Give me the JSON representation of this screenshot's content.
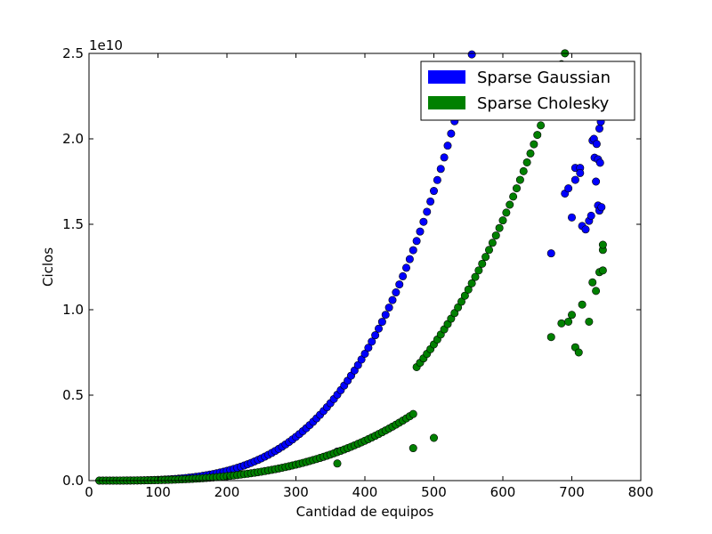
{
  "chart_data": {
    "type": "scatter",
    "xlabel": "Cantidad de equipos",
    "ylabel": "Ciclos",
    "y_multiplier_label": "1e10",
    "xlim": [
      0,
      800
    ],
    "ylim": [
      0,
      2.5
    ],
    "x_ticks": [
      "0",
      "100",
      "200",
      "300",
      "400",
      "500",
      "600",
      "700",
      "800"
    ],
    "y_ticks": [
      "0.0",
      "0.5",
      "1.0",
      "1.5",
      "2.0",
      "2.5"
    ],
    "grid": false,
    "legend_position": "top-right",
    "colors": {
      "gaussian": "#0000ff",
      "cholesky": "#008000"
    },
    "series": [
      {
        "name": "Sparse Gaussian",
        "color": "#0000ff",
        "curve": {
          "model": "power",
          "coef": 1.75e-10,
          "exponent": 3.7,
          "x_range": [
            15,
            745
          ],
          "step": 5
        },
        "points": [
          [
            360,
            0.17
          ],
          [
            670,
            1.33
          ],
          [
            690,
            1.68
          ],
          [
            695,
            1.71
          ],
          [
            700,
            1.54
          ],
          [
            705,
            1.76
          ],
          [
            705,
            1.83
          ],
          [
            712,
            1.83
          ],
          [
            712,
            1.8
          ],
          [
            715,
            1.49
          ],
          [
            720,
            1.47
          ],
          [
            725,
            1.52
          ],
          [
            728,
            1.55
          ],
          [
            730,
            1.99
          ],
          [
            732,
            2.0
          ],
          [
            733,
            1.89
          ],
          [
            735,
            1.75
          ],
          [
            736,
            1.97
          ],
          [
            738,
            1.88
          ],
          [
            738,
            1.61
          ],
          [
            740,
            2.06
          ],
          [
            740,
            1.58
          ],
          [
            741,
            1.86
          ],
          [
            742,
            2.1
          ],
          [
            743,
            1.6
          ],
          [
            744,
            2.14
          ]
        ]
      },
      {
        "name": "Sparse Cholesky",
        "color": "#008000",
        "curve": {
          "model": "power_segmented",
          "x_range": [
            15,
            745
          ],
          "step": 5,
          "segments": [
            {
              "x_max": 470,
              "coef": 1.24e-09,
              "exponent": 3.18
            },
            {
              "x_max": 800,
              "coef": 2.09e-10,
              "exponent": 3.55
            }
          ]
        },
        "points": [
          [
            360,
            0.1
          ],
          [
            470,
            0.19
          ],
          [
            500,
            0.25
          ],
          [
            670,
            0.84
          ],
          [
            685,
            0.92
          ],
          [
            695,
            0.93
          ],
          [
            700,
            0.97
          ],
          [
            705,
            0.78
          ],
          [
            710,
            0.75
          ],
          [
            715,
            1.03
          ],
          [
            725,
            0.93
          ],
          [
            730,
            1.16
          ],
          [
            735,
            1.11
          ],
          [
            740,
            1.22
          ],
          [
            745,
            1.23
          ],
          [
            745,
            1.35
          ],
          [
            745,
            1.38
          ]
        ]
      }
    ]
  }
}
